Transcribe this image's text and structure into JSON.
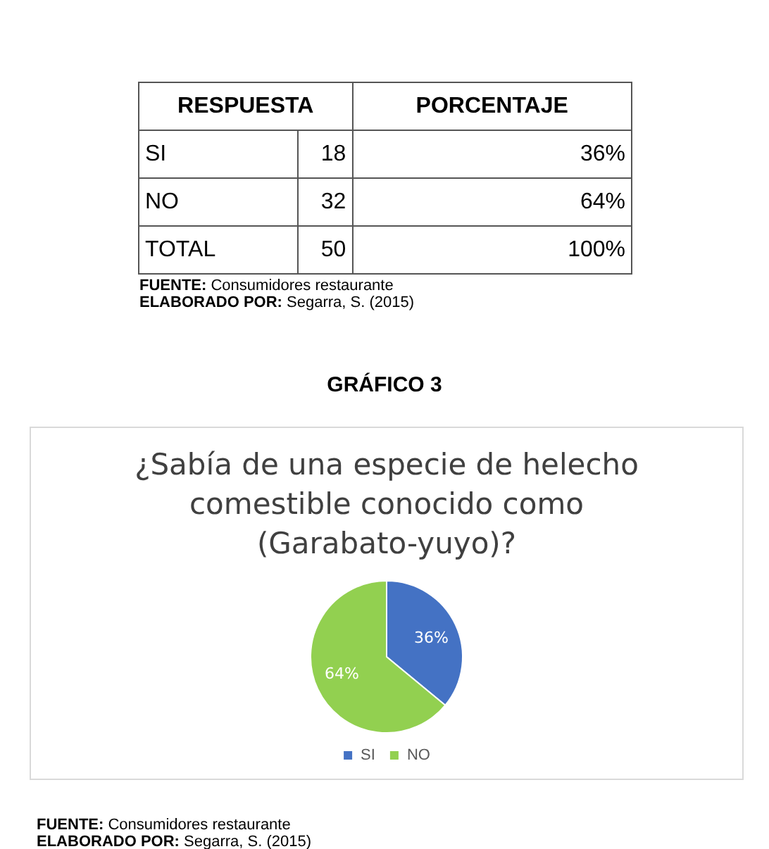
{
  "chart_data": {
    "type": "pie",
    "title": "¿Sabía de una especie de helecho comestible conocido como (Garabato-yuyo)?",
    "categories": [
      "SI",
      "NO"
    ],
    "values": [
      36,
      64
    ],
    "colors": [
      "#4472c4",
      "#92d050"
    ],
    "value_labels": [
      "36%",
      "64%"
    ],
    "legend": "bottom",
    "annotations": [
      "RESPUESTA",
      "PORCENTAJE",
      "SI",
      "18",
      "36%",
      "NO",
      "32",
      "64%",
      "TOTAL",
      "50",
      "100%",
      "FUENTE: Consumidores restaurante",
      "ELABORADO POR: Segarra, S. (2015)",
      "GRÁFICO 3",
      "FUENTE: Consumidores restaurante",
      "ELABORADO POR: Segarra, S. (2015)"
    ]
  }
}
